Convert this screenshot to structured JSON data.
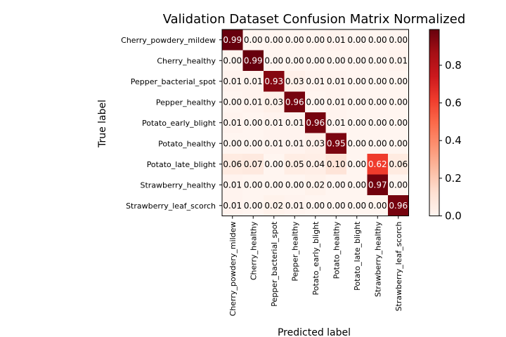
{
  "chart_data": {
    "type": "heatmap",
    "title": "Validation Dataset Confusion Matrix Normalized",
    "xlabel": "Predicted label",
    "ylabel": "True label",
    "x_categories": [
      "Cherry_powdery_mildew",
      "Cherry_healthy",
      "Pepper_bacterial_spot",
      "Pepper_healthy",
      "Potato_early_blight",
      "Potato_healthy",
      "Potato_late_blight",
      "Strawberry_healthy",
      "Strawberry_leaf_scorch"
    ],
    "y_categories": [
      "Cherry_powdery_mildew",
      "Cherry_healthy",
      "Pepper_bacterial_spot",
      "Pepper_healthy",
      "Potato_early_blight",
      "Potato_healthy",
      "Potato_late_blight",
      "Strawberry_healthy",
      "Strawberry_leaf_scorch"
    ],
    "values": [
      [
        0.99,
        0.0,
        0.0,
        0.0,
        0.0,
        0.01,
        0.0,
        0.0,
        0.0
      ],
      [
        0.0,
        0.99,
        0.0,
        0.0,
        0.0,
        0.0,
        0.0,
        0.0,
        0.01
      ],
      [
        0.01,
        0.01,
        0.93,
        0.03,
        0.01,
        0.01,
        0.0,
        0.0,
        0.0
      ],
      [
        0.0,
        0.01,
        0.03,
        0.96,
        0.0,
        0.01,
        0.0,
        0.0,
        0.0
      ],
      [
        0.01,
        0.0,
        0.01,
        0.01,
        0.96,
        0.01,
        0.0,
        0.0,
        0.0
      ],
      [
        0.0,
        0.0,
        0.01,
        0.01,
        0.03,
        0.95,
        0.0,
        0.0,
        0.0
      ],
      [
        0.06,
        0.07,
        0.0,
        0.05,
        0.04,
        0.1,
        0.0,
        0.62,
        0.06
      ],
      [
        0.01,
        0.0,
        0.0,
        0.0,
        0.02,
        0.0,
        0.0,
        0.97,
        0.0
      ],
      [
        0.01,
        0.0,
        0.02,
        0.01,
        0.0,
        0.0,
        0.0,
        0.0,
        0.96
      ]
    ],
    "value_format": "0.00",
    "colormap": "Reds",
    "colorbar": {
      "range": [
        0.0,
        0.99
      ],
      "ticks": [
        0.0,
        0.2,
        0.4,
        0.6,
        0.8
      ],
      "tick_labels": [
        "0.0",
        "0.2",
        "0.4",
        "0.6",
        "0.8"
      ]
    },
    "grid": false
  }
}
